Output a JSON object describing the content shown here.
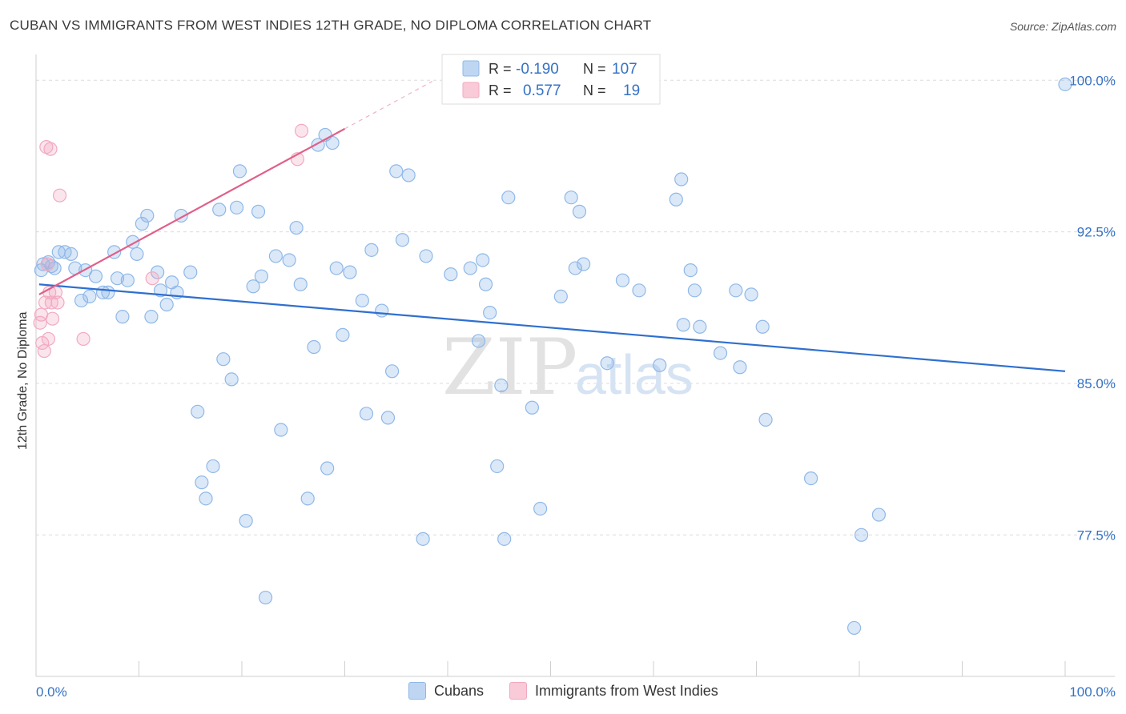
{
  "title": "CUBAN VS IMMIGRANTS FROM WEST INDIES 12TH GRADE, NO DIPLOMA CORRELATION CHART",
  "source": "Source: ZipAtlas.com",
  "watermark": {
    "zip": "ZIP",
    "atlas": "atlas"
  },
  "colors": {
    "cubans": "#8fb8e8",
    "cubans_line": "#2f6fcf",
    "wi": "#f2a9bf",
    "wi_line": "#e0608a",
    "tick_text": "#3572c4"
  },
  "legend_top": {
    "r_label": "R =",
    "n_label": "N =",
    "rows": [
      {
        "r": "-0.190",
        "n": "107"
      },
      {
        "r": "0.577",
        "n": "19"
      }
    ]
  },
  "legend_bottom": [
    "Cubans",
    "Immigrants from West Indies"
  ],
  "chart_data": {
    "type": "scatter",
    "title": "CUBAN VS IMMIGRANTS FROM WEST INDIES 12TH GRADE, NO DIPLOMA CORRELATION CHART",
    "xlabel": "",
    "ylabel": "12th Grade, No Diploma",
    "xlim": [
      0,
      100
    ],
    "ylim": [
      70.5,
      101.2
    ],
    "x_tick_labels": [
      "0.0%",
      "100.0%"
    ],
    "y_ticks": [
      77.5,
      85.0,
      92.5,
      100.0
    ],
    "y_tick_labels": [
      "77.5%",
      "85.0%",
      "92.5%",
      "100.0%"
    ],
    "grid": true,
    "legend_position": "top-center",
    "series": [
      {
        "name": "Cubans",
        "r": -0.19,
        "n": 107,
        "trend": [
          [
            0.3,
            89.9
          ],
          [
            100,
            85.6
          ]
        ],
        "points": [
          [
            0.5,
            90.6
          ],
          [
            0.7,
            90.9
          ],
          [
            1.2,
            91.0
          ],
          [
            1.5,
            90.8
          ],
          [
            1.8,
            90.7
          ],
          [
            2.2,
            91.5
          ],
          [
            2.8,
            91.5
          ],
          [
            3.4,
            91.4
          ],
          [
            3.8,
            90.7
          ],
          [
            4.4,
            89.1
          ],
          [
            4.8,
            90.6
          ],
          [
            5.2,
            89.3
          ],
          [
            5.8,
            90.3
          ],
          [
            6.5,
            89.5
          ],
          [
            7.0,
            89.5
          ],
          [
            7.6,
            91.5
          ],
          [
            7.9,
            90.2
          ],
          [
            8.4,
            88.3
          ],
          [
            8.9,
            90.1
          ],
          [
            9.4,
            92.0
          ],
          [
            9.8,
            91.4
          ],
          [
            10.3,
            92.9
          ],
          [
            10.8,
            93.3
          ],
          [
            11.2,
            88.3
          ],
          [
            11.8,
            90.5
          ],
          [
            12.1,
            89.6
          ],
          [
            12.7,
            88.9
          ],
          [
            13.2,
            90.0
          ],
          [
            13.7,
            89.5
          ],
          [
            14.1,
            93.3
          ],
          [
            15.0,
            90.5
          ],
          [
            15.7,
            83.6
          ],
          [
            16.1,
            80.1
          ],
          [
            16.5,
            79.3
          ],
          [
            17.2,
            80.9
          ],
          [
            17.8,
            93.6
          ],
          [
            18.2,
            86.2
          ],
          [
            19.0,
            85.2
          ],
          [
            19.5,
            93.7
          ],
          [
            19.8,
            95.5
          ],
          [
            20.4,
            78.2
          ],
          [
            21.1,
            89.8
          ],
          [
            21.6,
            93.5
          ],
          [
            21.9,
            90.3
          ],
          [
            22.3,
            74.4
          ],
          [
            23.3,
            91.3
          ],
          [
            23.8,
            82.7
          ],
          [
            24.6,
            91.1
          ],
          [
            25.3,
            92.7
          ],
          [
            25.7,
            89.9
          ],
          [
            26.4,
            79.3
          ],
          [
            27.0,
            86.8
          ],
          [
            27.4,
            96.8
          ],
          [
            28.1,
            97.3
          ],
          [
            28.3,
            80.8
          ],
          [
            28.8,
            96.9
          ],
          [
            29.2,
            90.7
          ],
          [
            29.8,
            87.4
          ],
          [
            30.5,
            90.5
          ],
          [
            31.7,
            89.1
          ],
          [
            32.1,
            83.5
          ],
          [
            32.6,
            91.6
          ],
          [
            33.6,
            88.6
          ],
          [
            34.2,
            83.3
          ],
          [
            34.6,
            85.6
          ],
          [
            35.0,
            95.5
          ],
          [
            35.6,
            92.1
          ],
          [
            36.2,
            95.3
          ],
          [
            37.6,
            77.3
          ],
          [
            37.9,
            91.3
          ],
          [
            40.3,
            90.4
          ],
          [
            42.2,
            90.7
          ],
          [
            43.0,
            87.1
          ],
          [
            43.4,
            91.1
          ],
          [
            43.7,
            89.9
          ],
          [
            44.1,
            88.5
          ],
          [
            44.8,
            80.9
          ],
          [
            45.2,
            84.9
          ],
          [
            45.5,
            77.3
          ],
          [
            45.9,
            94.2
          ],
          [
            48.2,
            83.8
          ],
          [
            49.0,
            78.8
          ],
          [
            51.0,
            89.3
          ],
          [
            52.0,
            94.2
          ],
          [
            52.4,
            90.7
          ],
          [
            52.8,
            93.5
          ],
          [
            53.2,
            90.9
          ],
          [
            55.5,
            86.0
          ],
          [
            57.0,
            90.1
          ],
          [
            58.6,
            89.6
          ],
          [
            60.6,
            85.9
          ],
          [
            62.2,
            94.1
          ],
          [
            62.7,
            95.1
          ],
          [
            62.9,
            87.9
          ],
          [
            63.6,
            90.6
          ],
          [
            64.0,
            89.6
          ],
          [
            64.5,
            87.8
          ],
          [
            66.5,
            86.5
          ],
          [
            68.0,
            89.6
          ],
          [
            68.4,
            85.8
          ],
          [
            69.5,
            89.4
          ],
          [
            70.6,
            87.8
          ],
          [
            70.9,
            83.2
          ],
          [
            75.3,
            80.3
          ],
          [
            79.5,
            72.9
          ],
          [
            80.2,
            77.5
          ],
          [
            81.9,
            78.5
          ],
          [
            100.0,
            99.8
          ]
        ]
      },
      {
        "name": "Immigrants from West Indies",
        "r": 0.577,
        "n": 19,
        "trend": [
          [
            0.3,
            89.4
          ],
          [
            30.0,
            97.6
          ]
        ],
        "points": [
          [
            0.4,
            88.0
          ],
          [
            0.5,
            88.4
          ],
          [
            0.6,
            87.0
          ],
          [
            0.8,
            86.6
          ],
          [
            0.9,
            89.0
          ],
          [
            1.0,
            96.7
          ],
          [
            1.1,
            90.9
          ],
          [
            1.2,
            87.2
          ],
          [
            1.3,
            89.5
          ],
          [
            1.4,
            96.6
          ],
          [
            1.5,
            89.0
          ],
          [
            1.6,
            88.2
          ],
          [
            1.9,
            89.5
          ],
          [
            2.1,
            89.0
          ],
          [
            2.3,
            94.3
          ],
          [
            4.6,
            87.2
          ],
          [
            11.3,
            90.2
          ],
          [
            25.4,
            96.1
          ],
          [
            25.8,
            97.5
          ]
        ]
      }
    ]
  }
}
